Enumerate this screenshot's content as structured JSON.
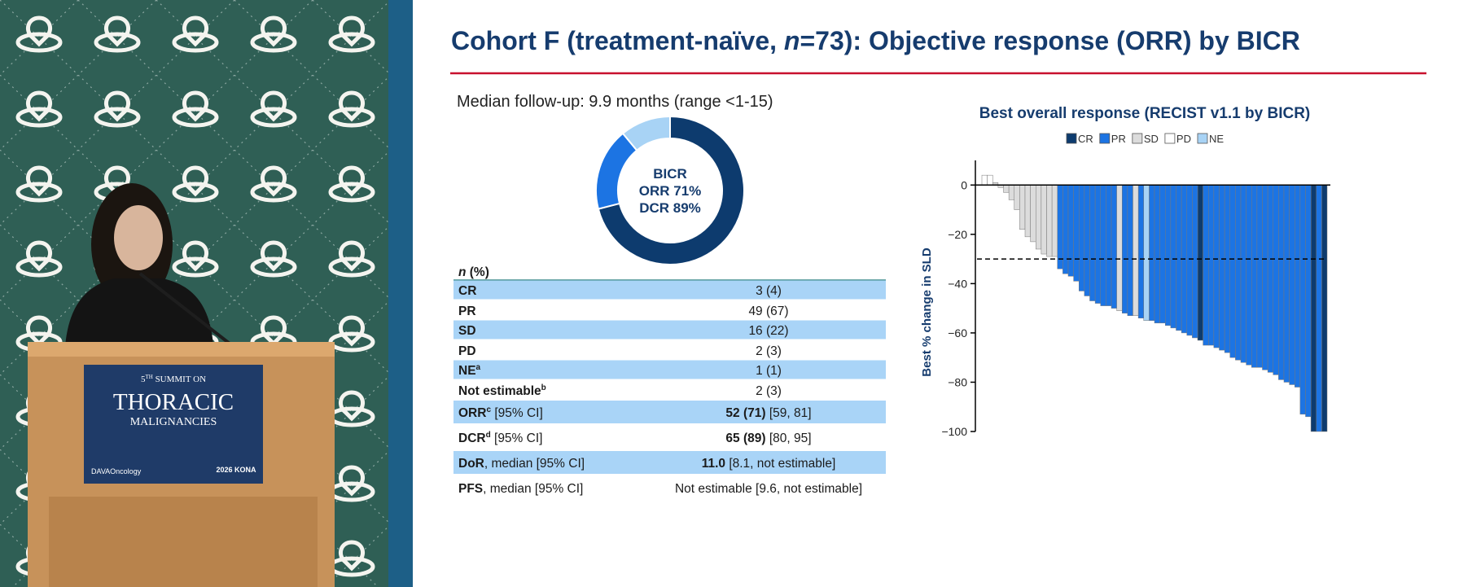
{
  "video": {
    "podium": {
      "line1": "5",
      "line1_sup": "TH",
      "line1_rest": " SUMMIT ON",
      "line2": "THORACIC",
      "line3": "MALIGNANCIES",
      "logo_left": "DAVAOncology",
      "logo_right": "2026 KONA"
    }
  },
  "slide": {
    "title": [
      "Cohort F (treatment-naïve, ",
      "n",
      "=73): Objective response (ORR) by BICR"
    ],
    "follow_up": "Median follow-up: 9.9 months (range <1-15)",
    "table": {
      "header": [
        "n",
        " (%)"
      ],
      "rows": [
        {
          "label": "CR",
          "value": "3 (4)"
        },
        {
          "label": "PR",
          "value": "49 (67)"
        },
        {
          "label": "SD",
          "value": "16 (22)"
        },
        {
          "label": "PD",
          "value": "2 (3)"
        },
        {
          "label": "NE",
          "sup": "a",
          "value": "1 (1)"
        },
        {
          "label": "Not estimable",
          "sup": "b",
          "value": "2 (3)"
        },
        {
          "label": "ORR",
          "sup": "c",
          "label_note": " [95% CI]",
          "value": "52 (71)",
          "value_note": " [59, 81]"
        },
        {
          "label": "DCR",
          "sup": "d",
          "label_note": " [95% CI]",
          "value": "65 (89)",
          "value_note": " [80, 95]"
        },
        {
          "label": "DoR",
          "label_note": ", median [95% CI]",
          "value": "11.0",
          "value_note": " [8.1, not estimable]"
        },
        {
          "label": "PFS",
          "label_note": ", median [95% CI]",
          "value": "Not estimable [9.6, not estimable]"
        }
      ]
    }
  },
  "chart_data": [
    {
      "type": "donut",
      "values": [
        71,
        18,
        11
      ],
      "colors": [
        "#0d3b6e",
        "#1c74e3",
        "#a8d3f5"
      ],
      "center_text": [
        "BICR",
        "ORR 71%",
        "DCR 89%"
      ]
    },
    {
      "type": "waterfall",
      "title": "Best overall response (RECIST v1.1 by BICR)",
      "ylabel": "Best % change in SLD",
      "ylim": [
        -100,
        10
      ],
      "yticks": [
        0,
        {
          "value": -20,
          "label": "−20"
        },
        {
          "value": -40,
          "label": "−40"
        },
        {
          "value": -60,
          "label": "−60"
        },
        {
          "value": -80,
          "label": "−80"
        },
        {
          "value": -100,
          "label": "−100"
        }
      ],
      "reference_line": -30,
      "series": [
        {
          "name": "CR",
          "color": "#0d3b6e",
          "values": [
            null,
            null,
            null,
            null,
            null,
            null,
            null,
            null,
            null,
            null,
            null,
            null,
            null,
            null,
            null,
            null,
            null,
            null,
            null,
            null,
            null,
            null,
            null,
            null,
            null,
            null,
            null,
            null,
            null,
            null,
            null,
            null,
            null,
            null,
            null,
            null,
            null,
            null,
            null,
            null,
            -63,
            null,
            null,
            null,
            null,
            null,
            null,
            null,
            null,
            null,
            null,
            null,
            null,
            null,
            null,
            null,
            null,
            null,
            null,
            null,
            null,
            -100,
            null,
            -100
          ]
        },
        {
          "name": "PR",
          "color": "#1c74e3",
          "values": [
            null,
            null,
            null,
            null,
            null,
            null,
            null,
            null,
            null,
            null,
            null,
            null,
            null,
            null,
            -34,
            -36,
            -37,
            -39,
            -43,
            -45,
            -47,
            -48,
            -49,
            -49,
            -50,
            null,
            -52,
            -53,
            null,
            -54,
            null,
            -55,
            -56,
            -56,
            -57,
            -58,
            -59,
            -60,
            -61,
            -62,
            null,
            -65,
            -65,
            -66,
            -67,
            -68,
            -70,
            -71,
            -72,
            -73,
            -74,
            -74,
            -75,
            -76,
            -77,
            -79,
            -80,
            -81,
            -82,
            -93,
            -94,
            null,
            -100,
            null
          ]
        },
        {
          "name": "SD",
          "color": "#dcdcdc",
          "values": [
            null,
            null,
            1,
            -1,
            -3,
            -6,
            -10,
            -18,
            -21,
            -23,
            -26,
            -28,
            -29,
            -29,
            null,
            null,
            null,
            null,
            null,
            null,
            null,
            null,
            null,
            null,
            null,
            -51,
            null,
            null,
            -53,
            null,
            null,
            null,
            null,
            null,
            null,
            null,
            null,
            null,
            null,
            null,
            null,
            null,
            null,
            null,
            null,
            null,
            null,
            null,
            null,
            null,
            null,
            null,
            null,
            null,
            null,
            null,
            null,
            null,
            null,
            null,
            null,
            null,
            null,
            null
          ]
        },
        {
          "name": "PD",
          "color": "#ffffff",
          "values": [
            4,
            4,
            null,
            null,
            null,
            null,
            null,
            null,
            null,
            null,
            null,
            null,
            null,
            null,
            null,
            null,
            null,
            null,
            null,
            null,
            null,
            null,
            null,
            null,
            null,
            null,
            null,
            null,
            null,
            null,
            null,
            null,
            null,
            null,
            null,
            null,
            null,
            null,
            null,
            null,
            null,
            null,
            null,
            null,
            null,
            null,
            null,
            null,
            null,
            null,
            null,
            null,
            null,
            null,
            null,
            null,
            null,
            null,
            null,
            null,
            null,
            null,
            null,
            null
          ]
        },
        {
          "name": "NE",
          "color": "#a8d3f5",
          "values": [
            null,
            null,
            null,
            null,
            null,
            null,
            null,
            null,
            null,
            null,
            null,
            null,
            null,
            null,
            null,
            null,
            null,
            null,
            null,
            null,
            null,
            null,
            null,
            null,
            null,
            null,
            null,
            null,
            null,
            null,
            -55,
            null,
            null,
            null,
            null,
            null,
            null,
            null,
            null,
            null,
            null,
            null,
            null,
            null,
            null,
            null,
            null,
            null,
            null,
            null,
            null,
            null,
            null,
            null,
            null,
            null,
            null,
            null,
            null,
            null,
            null,
            null,
            null,
            null
          ]
        }
      ]
    }
  ]
}
